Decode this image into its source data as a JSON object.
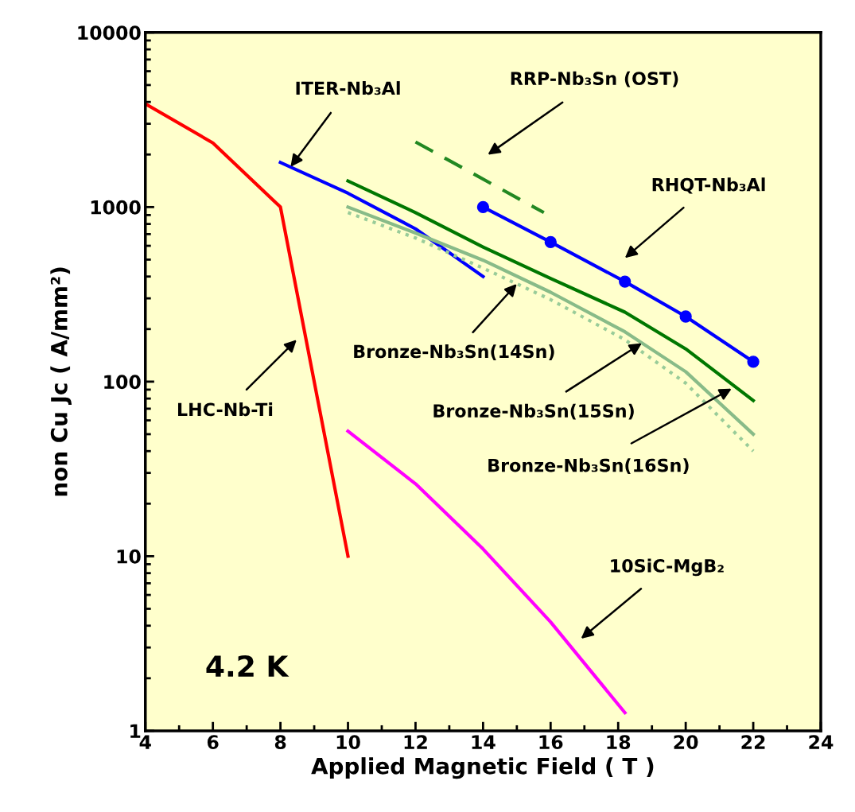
{
  "chart_data": {
    "type": "line",
    "xlabel": "Applied Magnetic Field ( T )",
    "ylabel": "non Cu Jc ( A/mm²)",
    "log": "y",
    "xlim": [
      4,
      24
    ],
    "xticks": [
      4,
      6,
      8,
      10,
      12,
      14,
      16,
      18,
      20,
      22,
      24
    ],
    "ylim": [
      1,
      10000
    ],
    "yticks": [
      1,
      10,
      100,
      1000,
      10000
    ],
    "grid": false,
    "legend": false,
    "marker": "none",
    "line_style": "solid",
    "series": [
      {
        "color": "#ff0000",
        "x": [
          4,
          6,
          8,
          10
        ],
        "values": [
          3900,
          2330,
          1000,
          10
        ]
      },
      {
        "color": "#0000ff",
        "x": [
          8,
          10,
          12,
          14
        ],
        "values": [
          1800,
          1200,
          750,
          400
        ]
      },
      {
        "color": "#228822",
        "line_style": "dashed",
        "x": [
          12,
          15.8
        ],
        "values": [
          2360,
          930
        ]
      },
      {
        "color": "#0000ff",
        "marker": "circle",
        "x": [
          14,
          16,
          18.2,
          20,
          22
        ],
        "values": [
          1000,
          630,
          374,
          236,
          130
        ]
      },
      {
        "color": "#007700",
        "x": [
          10,
          12,
          14,
          16,
          18.2,
          20,
          22
        ],
        "values": [
          1410,
          930,
          590,
          390,
          250,
          154,
          78
        ]
      },
      {
        "color": "#88bb88",
        "x": [
          10,
          12,
          14,
          16,
          18.2,
          20,
          22
        ],
        "values": [
          1000,
          710,
          496,
          325,
          193,
          114,
          50
        ]
      },
      {
        "color": "#99cc99",
        "line_style": "dotted",
        "x": [
          10,
          12,
          14,
          16,
          18.2,
          20,
          22
        ],
        "values": [
          930,
          665,
          447,
          295,
          174,
          98,
          40
        ]
      },
      {
        "color": "#ff00ff",
        "x": [
          10,
          12,
          14,
          16,
          18.2
        ],
        "values": [
          52,
          26,
          11,
          4.2,
          1.27
        ]
      }
    ],
    "annotations": [
      {
        "text": "ITER-Nb₃Al",
        "x": 8.3,
        "y": 1700
      },
      "RRP-Nb₃Sn (OST)",
      "RHQT-Nb₃Al",
      {
        "text": "Bronze-Nb₃Sn(14Sn)",
        "x": 15,
        "y": 363
      },
      {
        "text": "Bronze-Nb₃Sn(15Sn)",
        "x": 18.7,
        "y": 166
      },
      "Bronze-Nb₃Sn(16Sn)",
      "LHC-Nb-Ti",
      "10SiC-MgB₂",
      "4.2 K"
    ]
  }
}
